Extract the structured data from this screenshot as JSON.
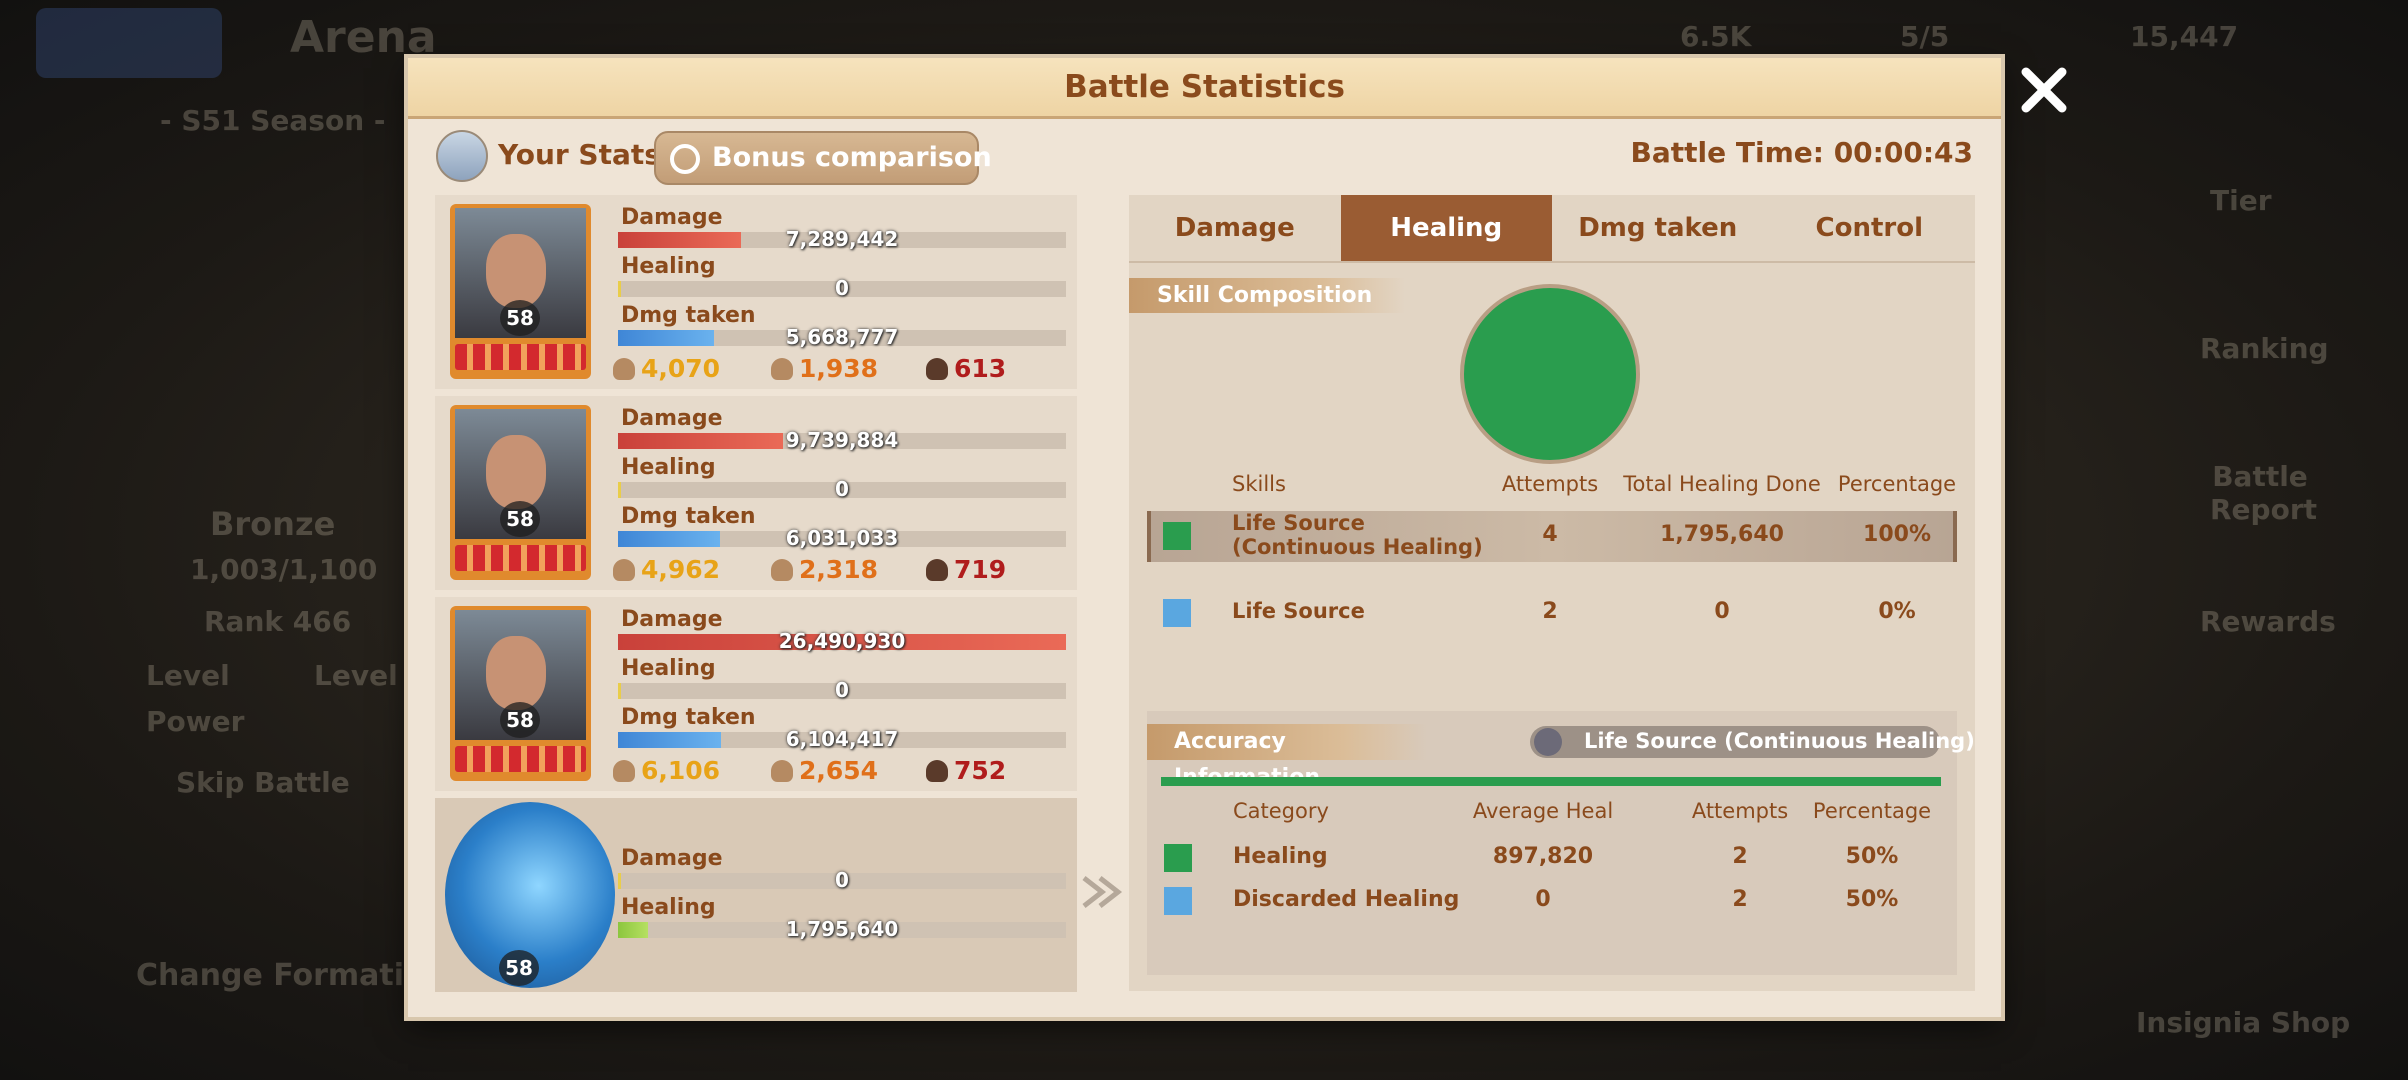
{
  "background": {
    "title": "Arena",
    "season": "- S51 Season -",
    "league": "Bronze",
    "points": "1,003/1,100",
    "rank": "Rank 466",
    "level_label": "Level",
    "level_value": "Level",
    "power_label": "Power",
    "skip_battle": "Skip Battle",
    "change_formation": "Change Formation",
    "tier": "Tier",
    "ranking": "Ranking",
    "battle_report": "Battle Report",
    "rewards": "Rewards",
    "insignia_shop": "Insignia Shop",
    "currency_1": "6.5K",
    "currency_2": "5/5",
    "currency_3": "15,447"
  },
  "modal": {
    "title": "Battle Statistics",
    "your_stats": "Your Stats",
    "bonus_comparison": "Bonus comparison",
    "battle_time": "Battle Time: 00:00:43",
    "heroes": [
      {
        "level": "58",
        "stats": [
          {
            "label": "Damage",
            "value": 7289442,
            "text": "7,289,442"
          },
          {
            "label": "Healing",
            "value": 0,
            "text": "0"
          },
          {
            "label": "Dmg taken",
            "value": 5668777,
            "text": "5,668,777"
          }
        ],
        "totals": [
          "4,070",
          "1,938",
          "613"
        ]
      },
      {
        "level": "58",
        "stats": [
          {
            "label": "Damage",
            "value": 9739884,
            "text": "9,739,884"
          },
          {
            "label": "Healing",
            "value": 0,
            "text": "0"
          },
          {
            "label": "Dmg taken",
            "value": 6031033,
            "text": "6,031,033"
          }
        ],
        "totals": [
          "4,962",
          "2,318",
          "719"
        ]
      },
      {
        "level": "58",
        "stats": [
          {
            "label": "Damage",
            "value": 26490930,
            "text": "26,490,930"
          },
          {
            "label": "Healing",
            "value": 0,
            "text": "0"
          },
          {
            "label": "Dmg taken",
            "value": 6104417,
            "text": "6,104,417"
          }
        ],
        "totals": [
          "6,106",
          "2,654",
          "752"
        ]
      },
      {
        "level": "58",
        "stats": [
          {
            "label": "Damage",
            "value": 0,
            "text": "0"
          },
          {
            "label": "Healing",
            "value": 1795640,
            "text": "1,795,640"
          }
        ]
      }
    ],
    "tabs": [
      "Damage",
      "Healing",
      "Dmg taken",
      "Control"
    ],
    "active_tab": 1,
    "skill_composition": "Skill Composition",
    "skills": {
      "headers": [
        "Skills",
        "Attempts",
        "Total Healing Done",
        "Percentage"
      ],
      "rows": [
        [
          "Life Source (Continuous Healing)",
          "4",
          "1,795,640",
          "100%"
        ],
        [
          "Life Source",
          "2",
          "0",
          "0%"
        ]
      ]
    },
    "accuracy": {
      "title": "Accuracy Information",
      "skill": "Life Source (Continuous Healing)",
      "headers": [
        "Category",
        "Average Heal",
        "Attempts",
        "Percentage"
      ],
      "rows": [
        [
          "Healing",
          "897,820",
          "2",
          "50%"
        ],
        [
          "Discarded Healing",
          "0",
          "2",
          "50%"
        ]
      ]
    }
  }
}
